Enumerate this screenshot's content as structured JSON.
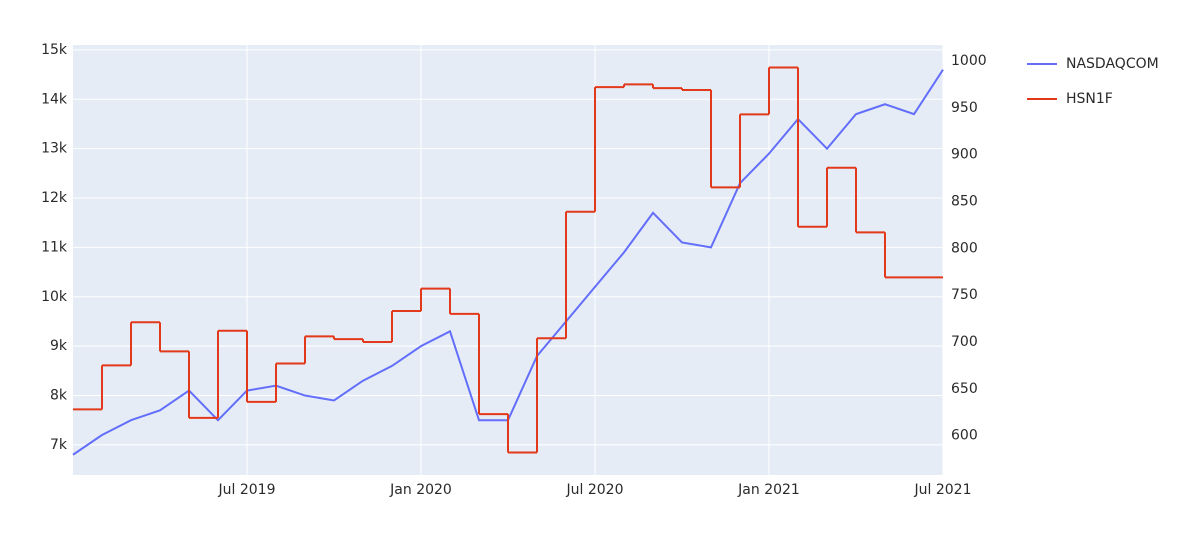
{
  "chart_data": {
    "type": "line",
    "x": [
      "2019-01",
      "2019-02",
      "2019-03",
      "2019-04",
      "2019-05",
      "2019-06",
      "2019-07",
      "2019-08",
      "2019-09",
      "2019-10",
      "2019-11",
      "2019-12",
      "2020-01",
      "2020-02",
      "2020-03",
      "2020-04",
      "2020-05",
      "2020-06",
      "2020-07",
      "2020-08",
      "2020-09",
      "2020-10",
      "2020-11",
      "2020-12",
      "2021-01",
      "2021-02",
      "2021-03",
      "2021-04",
      "2021-05",
      "2021-06",
      "2021-07"
    ],
    "series": [
      {
        "name": "NASDAQCOM",
        "color": "#636efa",
        "axis": "y",
        "values": [
          6800,
          7200,
          7500,
          7700,
          8100,
          7500,
          8100,
          8200,
          8000,
          7900,
          8300,
          8600,
          9000,
          9300,
          7500,
          7500,
          8800,
          9500,
          10200,
          10900,
          11700,
          11100,
          11000,
          12300,
          12900,
          13600,
          13000,
          13700,
          13900,
          13700,
          14600
        ]
      },
      {
        "name": "HSN1F",
        "color": "#e3391b",
        "axis": "y2",
        "line_shape": "hv",
        "values": [
          628,
          675,
          721,
          690,
          619,
          712,
          636,
          677,
          706,
          703,
          700,
          733,
          757,
          730,
          623,
          582,
          704,
          839,
          972,
          975,
          971,
          969,
          865,
          943,
          993,
          823,
          886,
          817,
          769,
          769,
          769
        ]
      }
    ],
    "xlim": [
      "2019-01",
      "2021-07"
    ],
    "xticks": [
      {
        "value": "2019-07",
        "label": "Jul 2019"
      },
      {
        "value": "2020-01",
        "label": "Jan 2020"
      },
      {
        "value": "2020-07",
        "label": "Jul 2020"
      },
      {
        "value": "2021-01",
        "label": "Jan 2021"
      },
      {
        "value": "2021-07",
        "label": "Jul 2021"
      }
    ],
    "ylim": [
      6390,
      15100
    ],
    "yticks": [
      {
        "value": 7000,
        "label": "7k"
      },
      {
        "value": 8000,
        "label": "8k"
      },
      {
        "value": 9000,
        "label": "9k"
      },
      {
        "value": 10000,
        "label": "10k"
      },
      {
        "value": 11000,
        "label": "11k"
      },
      {
        "value": 12000,
        "label": "12k"
      },
      {
        "value": 13000,
        "label": "13k"
      },
      {
        "value": 14000,
        "label": "14k"
      },
      {
        "value": 15000,
        "label": "15k"
      }
    ],
    "y2lim": [
      558,
      1017
    ],
    "y2ticks": [
      600,
      650,
      700,
      750,
      800,
      850,
      900,
      950,
      1000
    ],
    "grid": true
  }
}
